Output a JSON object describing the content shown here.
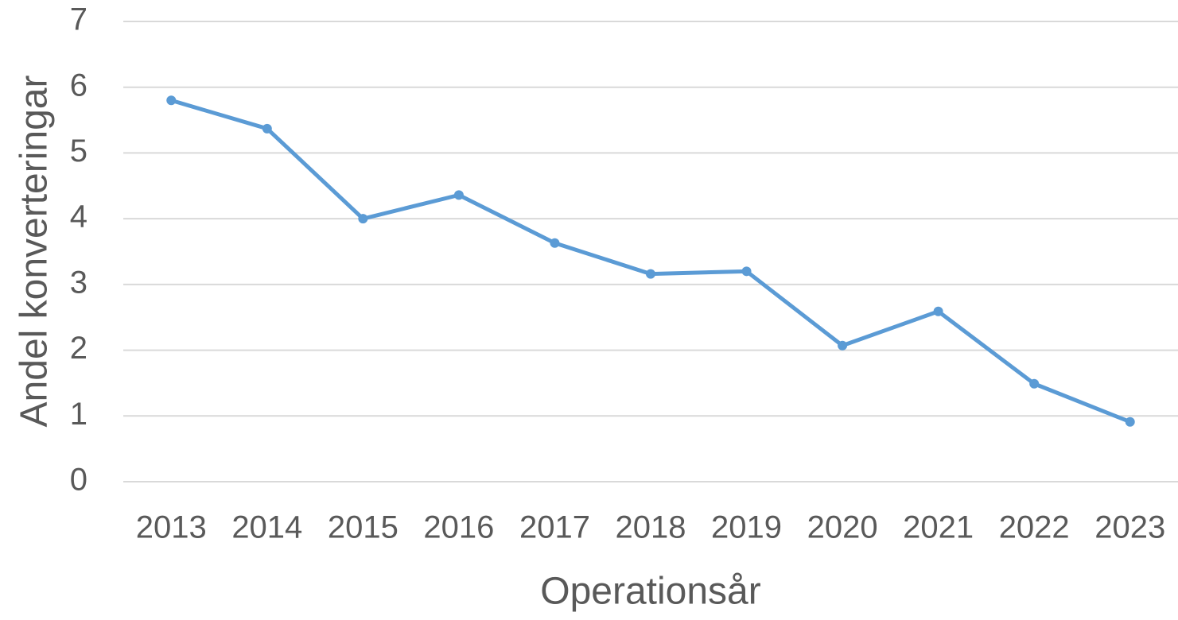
{
  "chart_data": {
    "type": "line",
    "x_label": "Operationsår",
    "y_label": "Andel konverteringar",
    "categories": [
      "2013",
      "2014",
      "2015",
      "2016",
      "2017",
      "2018",
      "2019",
      "2020",
      "2021",
      "2022",
      "2023"
    ],
    "values": [
      5.8,
      5.37,
      4.0,
      4.36,
      3.63,
      3.16,
      3.2,
      2.07,
      2.59,
      1.49,
      0.91
    ],
    "color": "#5b9bd5",
    "ylim": [
      0,
      7
    ],
    "yticks": [
      0,
      1,
      2,
      3,
      4,
      5,
      6,
      7
    ],
    "grid": true
  }
}
